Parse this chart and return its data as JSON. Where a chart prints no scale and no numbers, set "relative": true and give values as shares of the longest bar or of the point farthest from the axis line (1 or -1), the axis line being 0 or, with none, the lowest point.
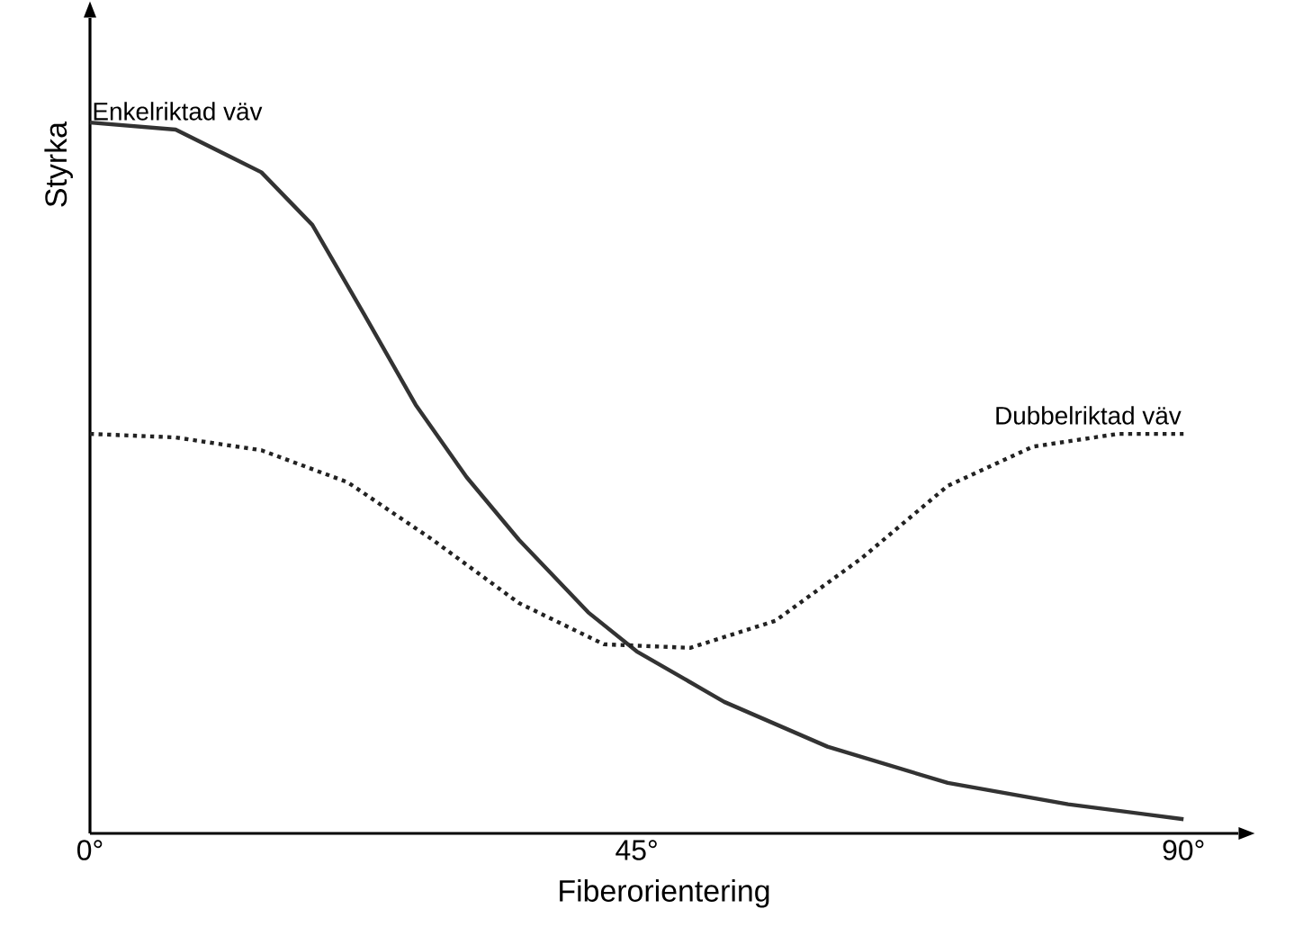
{
  "chart_data": {
    "type": "line",
    "relative": true,
    "xlabel": "Fiberorientering",
    "ylabel": "Styrka",
    "xlim": [
      0,
      94.5
    ],
    "xticks": [
      {
        "value": 0,
        "label": "0°"
      },
      {
        "value": 45,
        "label": "45°"
      },
      {
        "value": 90,
        "label": "90°"
      }
    ],
    "series": [
      {
        "name": "Enkelriktad väv",
        "color": "#333333",
        "line_style": "solid",
        "x": [
          0,
          7.05,
          14.1,
          18.3,
          22.6,
          26.8,
          31,
          35.3,
          41,
          45,
          52.2,
          60.7,
          70.6,
          80.5,
          90
        ],
        "values": [
          1.0,
          0.99,
          0.93,
          0.856,
          0.729,
          0.603,
          0.501,
          0.413,
          0.311,
          0.256,
          0.185,
          0.122,
          0.071,
          0.041,
          0.02
        ]
      },
      {
        "name": "Dubbelriktad väv",
        "color": "#222222",
        "line_style": "dotted",
        "x": [
          0,
          7.05,
          14.1,
          21.2,
          28.2,
          35.3,
          42.3,
          49.4,
          56.4,
          63.5,
          70.6,
          77.6,
          84.6,
          90
        ],
        "values": [
          0.562,
          0.557,
          0.539,
          0.494,
          0.413,
          0.324,
          0.266,
          0.261,
          0.299,
          0.387,
          0.489,
          0.544,
          0.562,
          0.562
        ]
      }
    ]
  }
}
